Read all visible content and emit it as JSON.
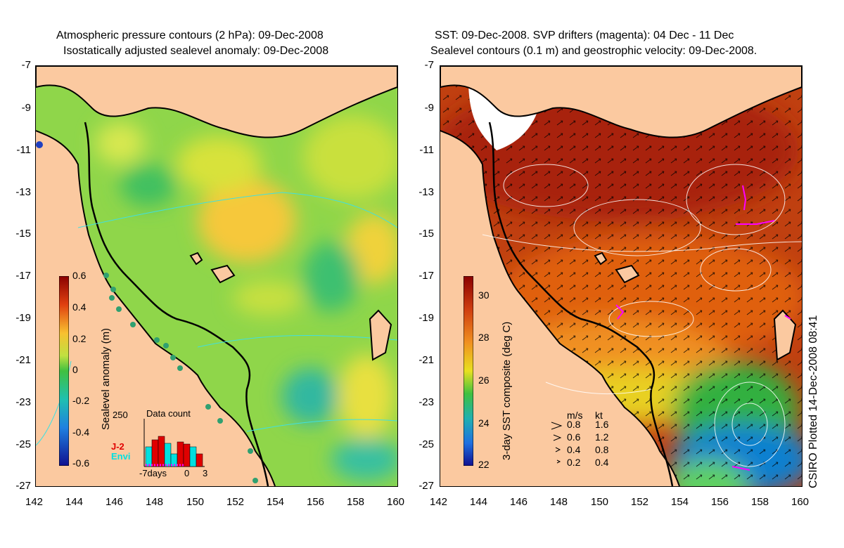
{
  "left_panel": {
    "title_line1": "Atmospheric pressure contours (2 hPa): 09-Dec-2008",
    "title_line2": "Isostatically adjusted sealevel anomaly: 09-Dec-2008",
    "colorbar": {
      "label": "Sealevel anomaly (m)",
      "ticks": [
        "0.6",
        "0.4",
        "0.2",
        "0",
        "-0.2",
        "-0.4",
        "-0.6"
      ],
      "range": [
        -0.6,
        0.6
      ]
    },
    "inset": {
      "title": "Data count",
      "ymax_label": "250",
      "x_labels": [
        "-7days",
        "0",
        "3"
      ],
      "series": [
        {
          "name": "J-2",
          "color": "#e00000"
        },
        {
          "name": "Envi",
          "color": "#00e0e0"
        }
      ]
    }
  },
  "right_panel": {
    "title_line1": "SST: 09-Dec-2008. SVP drifters (magenta): 04 Dec - 11 Dec",
    "title_line2": "Sealevel contours (0.1 m) and geostrophic velocity: 09-Dec-2008.",
    "colorbar": {
      "label": "3-day SST composite (deg C)",
      "ticks": [
        "30",
        "28",
        "26",
        "24",
        "22"
      ],
      "range": [
        22,
        31
      ]
    },
    "velocity_legend": {
      "units": [
        "m/s",
        "kt"
      ],
      "rows": [
        [
          "0.8",
          "1.6"
        ],
        [
          "0.6",
          "1.2"
        ],
        [
          "0.4",
          "0.8"
        ],
        [
          "0.2",
          "0.4"
        ]
      ]
    },
    "credit": "CSIRO Plotted 14-Dec-2008 08:41"
  },
  "axes": {
    "y_ticks": [
      "-7",
      "-9",
      "-11",
      "-13",
      "-15",
      "-17",
      "-19",
      "-21",
      "-23",
      "-25",
      "-27"
    ],
    "x_ticks": [
      "142",
      "144",
      "146",
      "148",
      "150",
      "152",
      "154",
      "156",
      "158",
      "160"
    ],
    "lon_range": [
      142,
      160
    ],
    "lat_range": [
      -27,
      -7
    ]
  },
  "colors": {
    "land": "#fbc9a0",
    "coast": "#000000",
    "pressure_contour": "#40e0e0",
    "drifters": "#ff00ff"
  }
}
